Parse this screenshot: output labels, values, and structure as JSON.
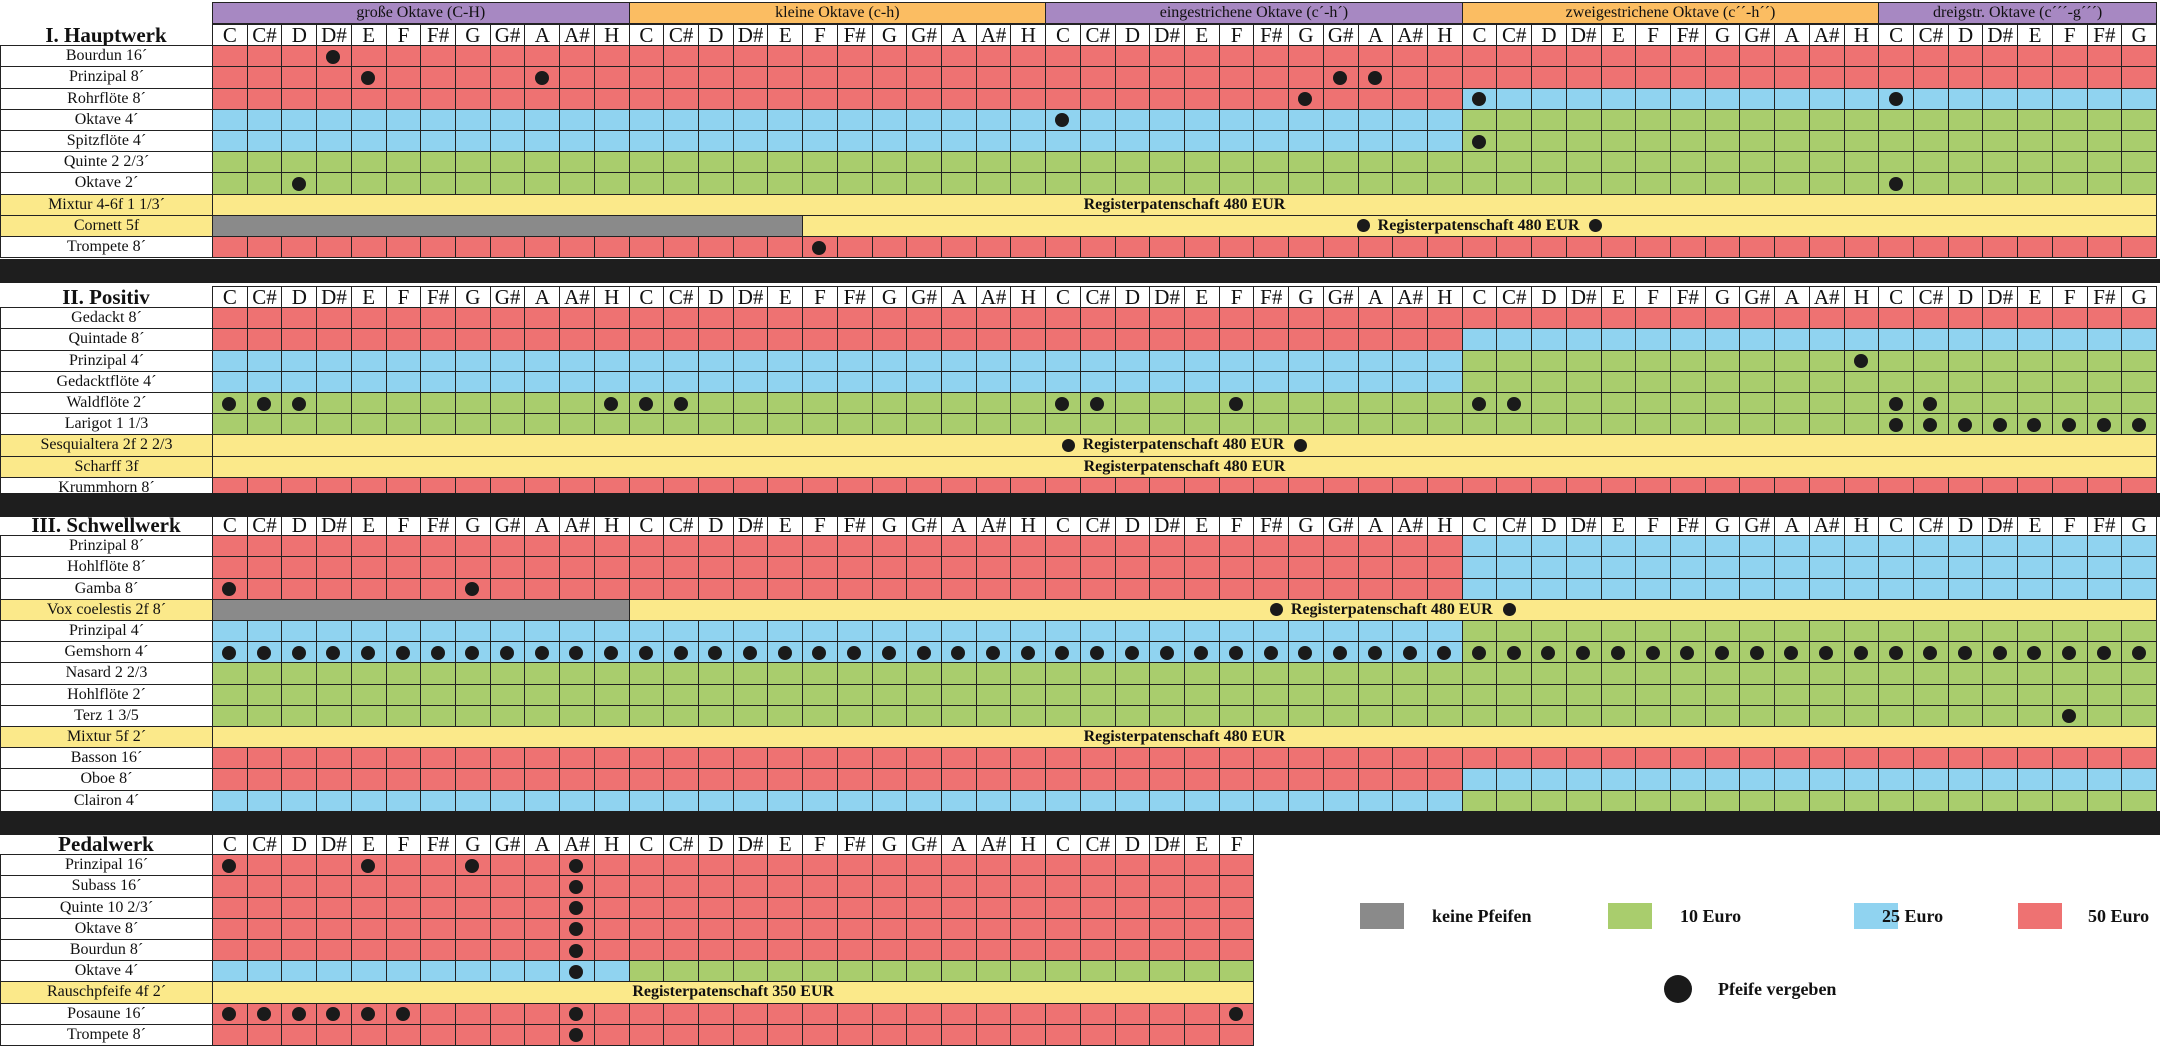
{
  "colors": {
    "red": "#ee7272",
    "blue": "#90d3f0",
    "green": "#a9cd6d",
    "gray": "#8a8a8a",
    "yellow": "#fbe98a",
    "purple": "#a788c2",
    "orange": "#fbbd62"
  },
  "octave_headers": [
    {
      "label": "große Oktave (C-H)",
      "color": "purple"
    },
    {
      "label": "kleine Oktave (c-h)",
      "color": "orange"
    },
    {
      "label": "eingestrichene Oktave (c´-h´)",
      "color": "purple"
    },
    {
      "label": "zweigestrichene Oktave (c´´-h´´)",
      "color": "orange"
    },
    {
      "label": "dreigstr. Oktave (c´´´-g´´´)",
      "color": "purple"
    }
  ],
  "sections": [
    {
      "title": "I. Hauptwerk",
      "keys": 56,
      "notes": [
        "C",
        "C#",
        "D",
        "D#",
        "E",
        "F",
        "F#",
        "G",
        "G#",
        "A",
        "A#",
        "H",
        "C",
        "C#",
        "D",
        "D#",
        "E",
        "F",
        "F#",
        "G",
        "G#",
        "A",
        "A#",
        "H",
        "C",
        "C#",
        "D",
        "D#",
        "E",
        "F",
        "F#",
        "G",
        "G#",
        "A",
        "A#",
        "H",
        "C",
        "C#",
        "D",
        "D#",
        "E",
        "F",
        "F#",
        "G",
        "G#",
        "A",
        "A#",
        "H",
        "C",
        "C#",
        "D",
        "D#",
        "E",
        "F",
        "F#",
        "G"
      ],
      "rows": [
        {
          "name": "Bourdun 16´",
          "segs": [
            [
              "R",
              56
            ]
          ],
          "dots": [
            3
          ]
        },
        {
          "name": "Prinzipal 8´",
          "segs": [
            [
              "R",
              56
            ]
          ],
          "dots": [
            4,
            9,
            32,
            33
          ]
        },
        {
          "name": "Rohrflöte 8´",
          "segs": [
            [
              "R",
              36
            ],
            [
              "B",
              20
            ]
          ],
          "dots": [
            31,
            36,
            48
          ]
        },
        {
          "name": "Oktave 4´",
          "segs": [
            [
              "B",
              36
            ],
            [
              "G",
              20
            ]
          ],
          "dots": [
            24
          ]
        },
        {
          "name": "Spitzflöte 4´",
          "segs": [
            [
              "B",
              36
            ],
            [
              "G",
              20
            ]
          ],
          "dots": [
            36
          ]
        },
        {
          "name": "Quinte 2 2/3´",
          "segs": [
            [
              "G",
              56
            ]
          ],
          "dots": []
        },
        {
          "name": "Oktave 2´",
          "segs": [
            [
              "G",
              56
            ]
          ],
          "dots": [
            2,
            48
          ]
        },
        {
          "name": "Mixtur 4-6f 1 1/3´",
          "sponsor": true,
          "text": "Registerpatenschaft 480 EUR",
          "gray": 0,
          "flank": false
        },
        {
          "name": "Cornett 5f",
          "sponsor": true,
          "text": "Registerpatenschaft 480 EUR",
          "gray": 17,
          "flank": true
        },
        {
          "name": "Trompete 8´",
          "segs": [
            [
              "R",
              56
            ]
          ],
          "dots": [
            17
          ]
        }
      ]
    },
    {
      "title": "II. Positiv",
      "keys": 56,
      "notes": [
        "C",
        "C#",
        "D",
        "D#",
        "E",
        "F",
        "F#",
        "G",
        "G#",
        "A",
        "A#",
        "H",
        "C",
        "C#",
        "D",
        "D#",
        "E",
        "F",
        "F#",
        "G",
        "G#",
        "A",
        "A#",
        "H",
        "C",
        "C#",
        "D",
        "D#",
        "E",
        "F",
        "F#",
        "G",
        "G#",
        "A",
        "A#",
        "H",
        "C",
        "C#",
        "D",
        "D#",
        "E",
        "F",
        "F#",
        "G",
        "G#",
        "A",
        "A#",
        "H",
        "C",
        "C#",
        "D",
        "D#",
        "E",
        "F",
        "F#",
        "G"
      ],
      "rows": [
        {
          "name": "Gedackt 8´",
          "segs": [
            [
              "R",
              56
            ]
          ],
          "dots": []
        },
        {
          "name": "Quintade 8´",
          "segs": [
            [
              "R",
              36
            ],
            [
              "B",
              20
            ]
          ],
          "dots": []
        },
        {
          "name": "Prinzipal 4´",
          "segs": [
            [
              "B",
              36
            ],
            [
              "G",
              20
            ]
          ],
          "dots": [
            47
          ]
        },
        {
          "name": "Gedacktflöte 4´",
          "segs": [
            [
              "B",
              36
            ],
            [
              "G",
              20
            ]
          ],
          "dots": []
        },
        {
          "name": "Waldflöte 2´",
          "segs": [
            [
              "G",
              56
            ]
          ],
          "dots": [
            0,
            1,
            2,
            11,
            12,
            13,
            24,
            25,
            29,
            36,
            37,
            48,
            49
          ]
        },
        {
          "name": "Larigot 1 1/3",
          "segs": [
            [
              "G",
              56
            ]
          ],
          "dots": [
            48,
            49,
            50,
            51,
            52,
            53,
            54,
            55
          ]
        },
        {
          "name": "Sesquialtera 2f 2 2/3",
          "sponsor": true,
          "text": "Registerpatenschaft 480 EUR",
          "gray": 0,
          "flank": true
        },
        {
          "name": "Scharff 3f",
          "sponsor": true,
          "text": "Registerpatenschaft 480 EUR",
          "gray": 0,
          "flank": false
        },
        {
          "name": "Krummhorn 8´",
          "segs": [
            [
              "R",
              56
            ]
          ],
          "dots": []
        }
      ]
    },
    {
      "title": "III. Schwellwerk",
      "keys": 56,
      "notes": [
        "C",
        "C#",
        "D",
        "D#",
        "E",
        "F",
        "F#",
        "G",
        "G#",
        "A",
        "A#",
        "H",
        "C",
        "C#",
        "D",
        "D#",
        "E",
        "F",
        "F#",
        "G",
        "G#",
        "A",
        "A#",
        "H",
        "C",
        "C#",
        "D",
        "D#",
        "E",
        "F",
        "F#",
        "G",
        "G#",
        "A",
        "A#",
        "H",
        "C",
        "C#",
        "D",
        "D#",
        "E",
        "F",
        "F#",
        "G",
        "G#",
        "A",
        "A#",
        "H",
        "C",
        "C#",
        "D",
        "D#",
        "E",
        "F",
        "F#",
        "G"
      ],
      "rows": [
        {
          "name": "Prinzipal 8´",
          "segs": [
            [
              "R",
              36
            ],
            [
              "B",
              20
            ]
          ],
          "dots": []
        },
        {
          "name": "Hohlflöte 8´",
          "segs": [
            [
              "R",
              36
            ],
            [
              "B",
              20
            ]
          ],
          "dots": []
        },
        {
          "name": "Gamba 8´",
          "segs": [
            [
              "R",
              36
            ],
            [
              "B",
              20
            ]
          ],
          "dots": [
            0,
            7
          ]
        },
        {
          "name": "Vox coelestis 2f 8´",
          "sponsor": true,
          "text": "Registerpatenschaft 480 EUR",
          "gray": 12,
          "flank": true
        },
        {
          "name": "Prinzipal 4´",
          "segs": [
            [
              "B",
              36
            ],
            [
              "G",
              20
            ]
          ],
          "dots": []
        },
        {
          "name": "Gemshorn 4´",
          "segs": [
            [
              "B",
              36
            ],
            [
              "G",
              20
            ]
          ],
          "dots": "all"
        },
        {
          "name": "Nasard 2 2/3",
          "segs": [
            [
              "G",
              56
            ]
          ],
          "dots": []
        },
        {
          "name": "Hohlflöte 2´",
          "segs": [
            [
              "G",
              56
            ]
          ],
          "dots": []
        },
        {
          "name": "Terz 1 3/5",
          "segs": [
            [
              "G",
              56
            ]
          ],
          "dots": [
            53
          ]
        },
        {
          "name": "Mixtur 5f 2´",
          "sponsor": true,
          "text": "Registerpatenschaft 480 EUR",
          "gray": 0,
          "flank": false
        },
        {
          "name": "Basson 16´",
          "segs": [
            [
              "R",
              56
            ]
          ],
          "dots": []
        },
        {
          "name": "Oboe 8´",
          "segs": [
            [
              "R",
              36
            ],
            [
              "B",
              20
            ]
          ],
          "dots": []
        },
        {
          "name": "Clairon 4´",
          "segs": [
            [
              "B",
              36
            ],
            [
              "G",
              20
            ]
          ],
          "dots": []
        }
      ]
    },
    {
      "title": "Pedalwerk",
      "keys": 30,
      "notes": [
        "C",
        "C#",
        "D",
        "D#",
        "E",
        "F",
        "F#",
        "G",
        "G#",
        "A",
        "A#",
        "H",
        "C",
        "C#",
        "D",
        "D#",
        "E",
        "F",
        "F#",
        "G",
        "G#",
        "A",
        "A#",
        "H",
        "C",
        "C#",
        "D",
        "D#",
        "E",
        "F"
      ],
      "rows": [
        {
          "name": "Prinzipal 16´",
          "segs": [
            [
              "R",
              30
            ]
          ],
          "dots": [
            0,
            4,
            7,
            10
          ]
        },
        {
          "name": "Subass 16´",
          "segs": [
            [
              "R",
              30
            ]
          ],
          "dots": [
            10
          ]
        },
        {
          "name": "Quinte 10 2/3´",
          "segs": [
            [
              "R",
              30
            ]
          ],
          "dots": [
            10
          ]
        },
        {
          "name": "Oktave 8´",
          "segs": [
            [
              "R",
              30
            ]
          ],
          "dots": [
            10
          ]
        },
        {
          "name": "Bourdun 8´",
          "segs": [
            [
              "R",
              30
            ]
          ],
          "dots": [
            10
          ]
        },
        {
          "name": "Oktave 4´",
          "segs": [
            [
              "B",
              12
            ],
            [
              "G",
              18
            ]
          ],
          "dots": [
            10
          ]
        },
        {
          "name": "Rauschpfeife 4f 2´",
          "sponsor": true,
          "text": "Registerpatenschaft 350 EUR",
          "gray": 0,
          "flank": false
        },
        {
          "name": "Posaune 16´",
          "segs": [
            [
              "R",
              30
            ]
          ],
          "dots": [
            0,
            1,
            2,
            3,
            4,
            5,
            10,
            29
          ]
        },
        {
          "name": "Trompete 8´",
          "segs": [
            [
              "R",
              30
            ]
          ],
          "dots": [
            10
          ]
        }
      ]
    }
  ],
  "legend": [
    {
      "label": "keine Pfeifen",
      "color": "gray"
    },
    {
      "label": "10 Euro",
      "color": "green"
    },
    {
      "label": "25 Euro",
      "color": "blue"
    },
    {
      "label": "50 Euro",
      "color": "red"
    }
  ],
  "legend_dot_label": "Pfeife vergeben"
}
